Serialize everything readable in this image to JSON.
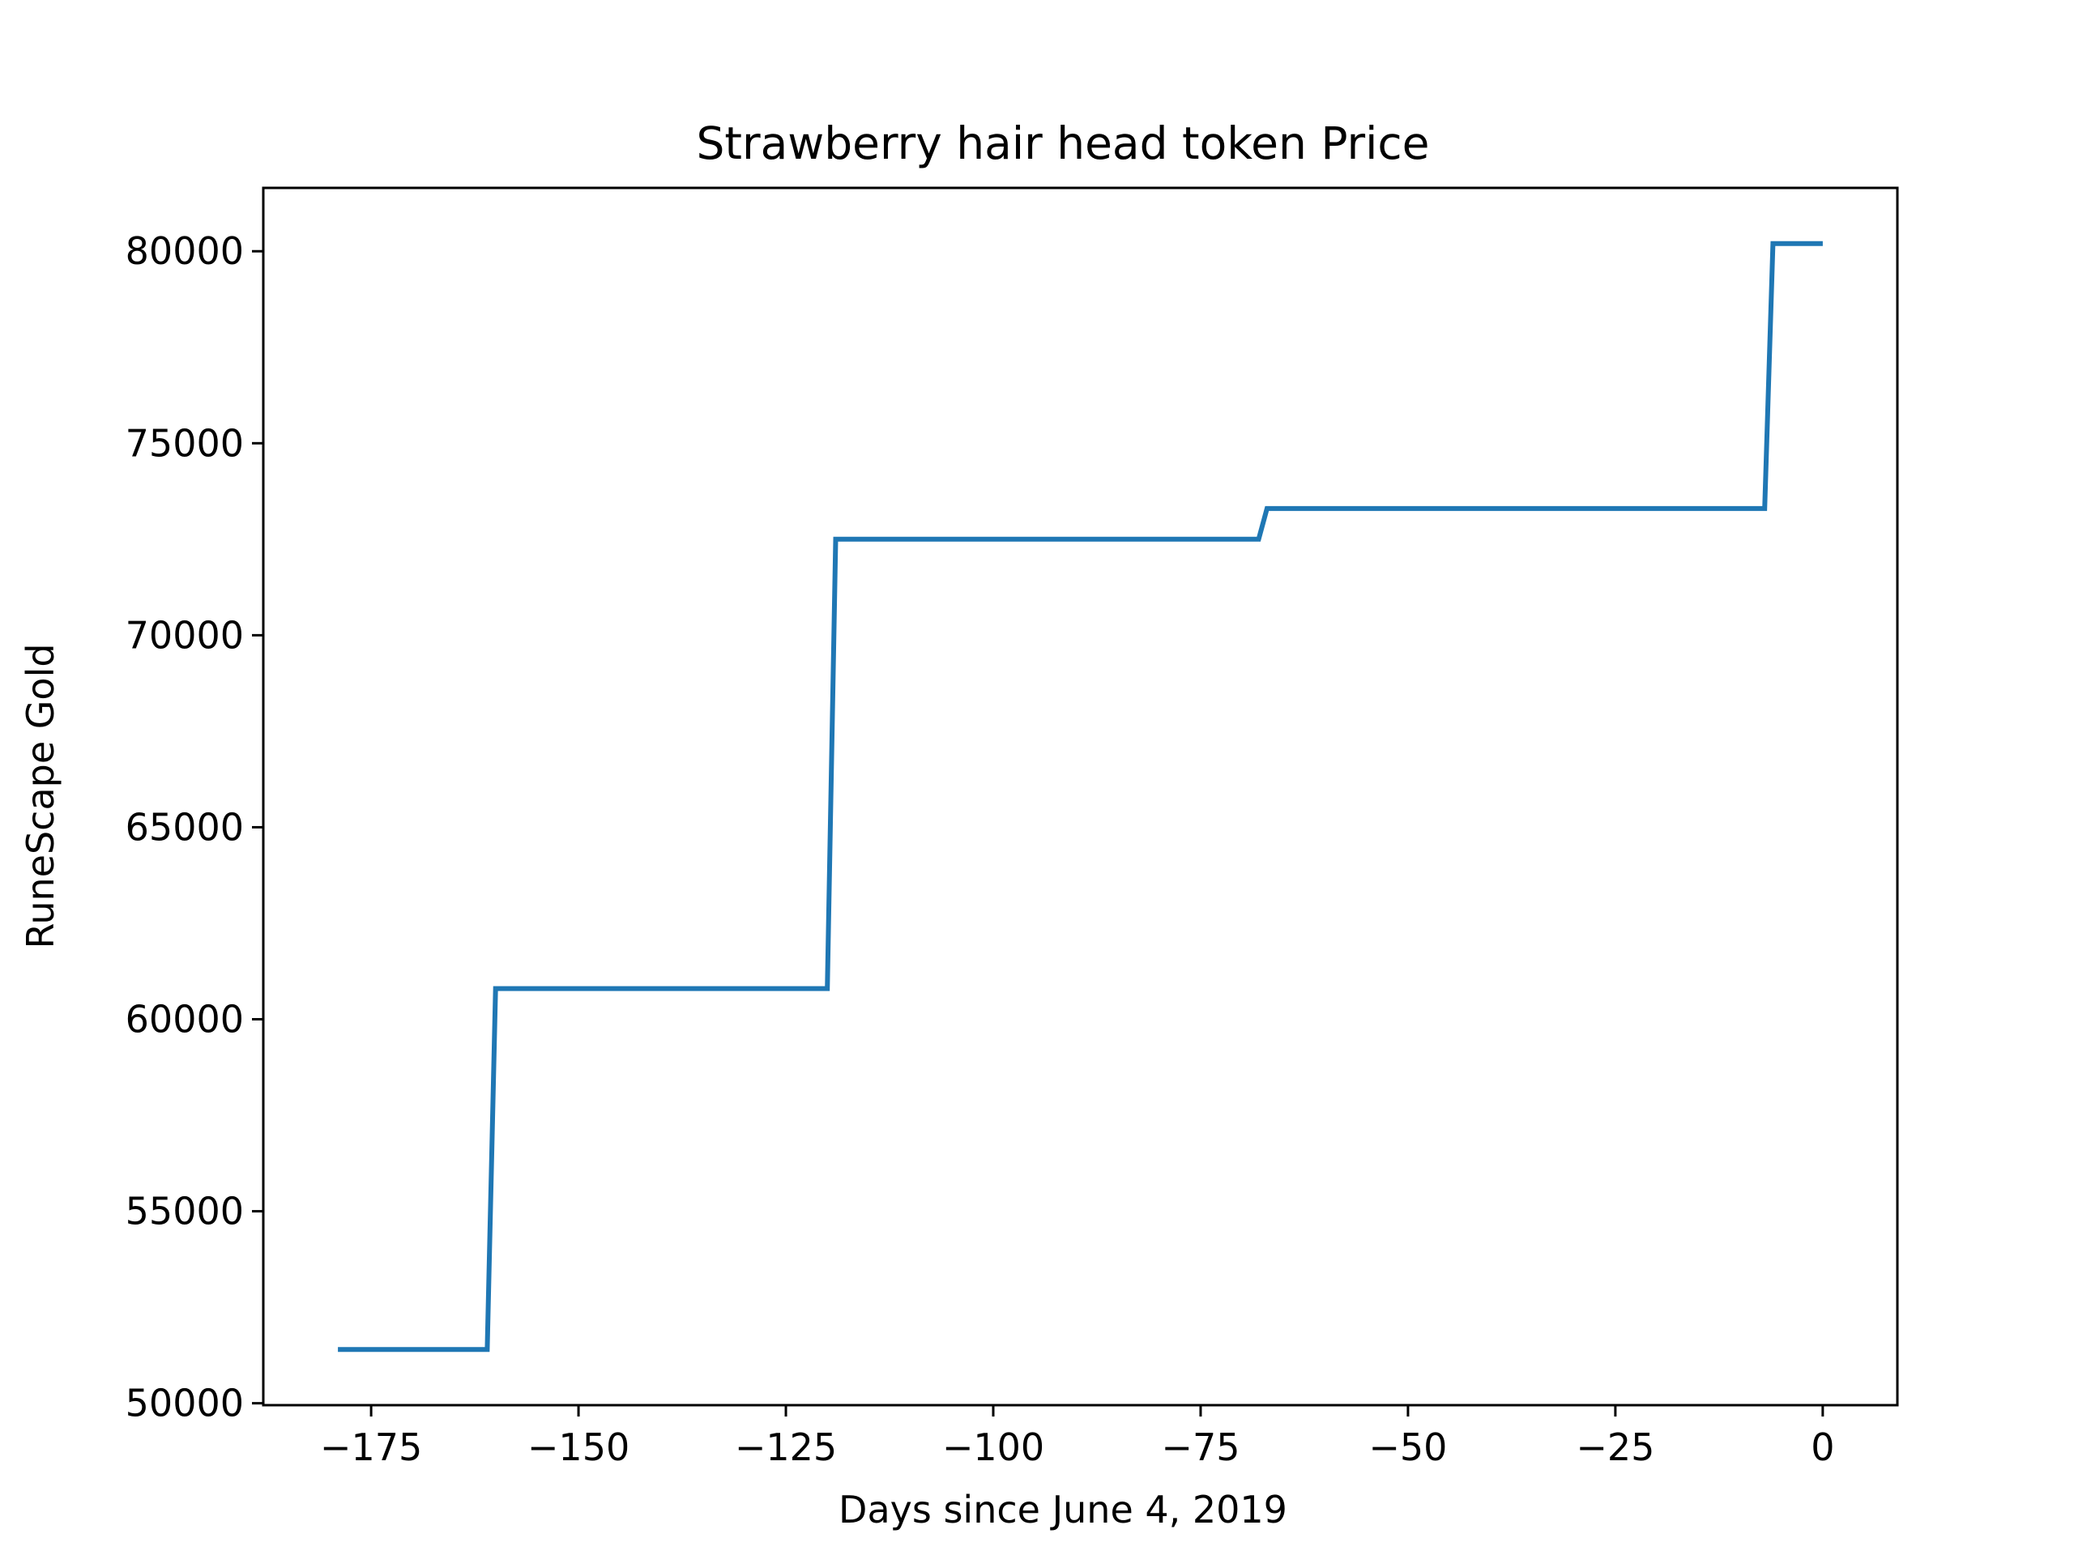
{
  "chart_data": {
    "type": "line",
    "title": "Strawberry hair head token Price",
    "xlabel": "Days since June 4, 2019",
    "ylabel": "RuneScape Gold",
    "xlim": [
      -188,
      9
    ],
    "ylim": [
      49950,
      81650
    ],
    "x_ticks": [
      -175,
      -150,
      -125,
      -100,
      -75,
      -50,
      -25,
      0
    ],
    "x_tick_labels": [
      "−175",
      "−150",
      "−125",
      "−100",
      "−75",
      "−50",
      "−25",
      "0"
    ],
    "y_ticks": [
      50000,
      55000,
      60000,
      65000,
      70000,
      75000,
      80000
    ],
    "y_tick_labels": [
      "50000",
      "55000",
      "60000",
      "65000",
      "70000",
      "75000",
      "80000"
    ],
    "grid": false,
    "series": [
      {
        "color": "#1f77b4",
        "x": [
          -179,
          -161,
          -160,
          -120,
          -119,
          -68,
          -67,
          -7,
          -6,
          0
        ],
        "y": [
          51400,
          51400,
          60800,
          60800,
          72500,
          72500,
          73300,
          73300,
          80200,
          80200
        ]
      }
    ]
  }
}
